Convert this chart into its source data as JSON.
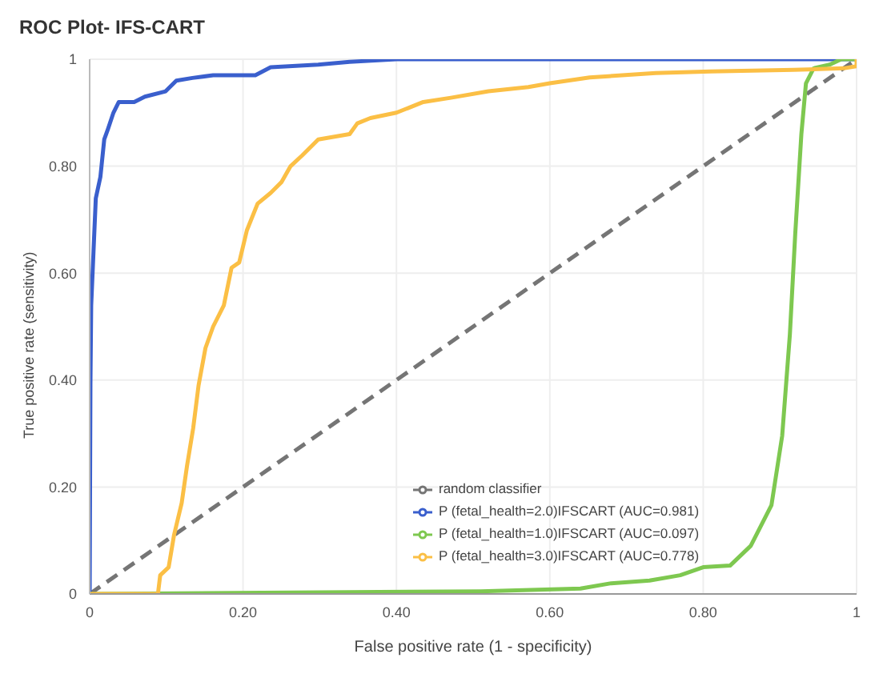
{
  "chart_data": {
    "type": "line",
    "title": "ROC Plot- IFS-CART",
    "xlabel": "False positive rate (1 - specificity)",
    "ylabel": "True positive rate (sensitivity)",
    "xlim": [
      0,
      1
    ],
    "ylim": [
      0,
      1
    ],
    "xticks": [
      0,
      {
        "value": 0.2,
        "label": "0.20"
      },
      {
        "value": 0.4,
        "label": "0.40"
      },
      {
        "value": 0.6,
        "label": "0.60"
      },
      {
        "value": 0.8,
        "label": "0.80"
      },
      1
    ],
    "yticks": [
      0,
      {
        "value": 0.2,
        "label": "0.20"
      },
      {
        "value": 0.4,
        "label": "0.40"
      },
      {
        "value": 0.6,
        "label": "0.60"
      },
      {
        "value": 0.8,
        "label": "0.80"
      },
      1
    ],
    "grid": true,
    "legend": "bottom right",
    "series": [
      {
        "name": "random classifier",
        "color": "#757575",
        "line_style": "dashed",
        "x": [
          0,
          1
        ],
        "values": [
          0,
          1
        ]
      },
      {
        "name": "P (fetal_health=2.0)IFSCART (AUC=0.981)",
        "color": "#3a5fcd",
        "line_style": "solid",
        "x": [
          0,
          0.001,
          0.002,
          0.005,
          0.008,
          0.014,
          0.019,
          0.024,
          0.031,
          0.038,
          0.058,
          0.072,
          0.099,
          0.113,
          0.134,
          0.161,
          0.216,
          0.236,
          0.298,
          0.339,
          0.4,
          1
        ],
        "values": [
          0,
          0.39,
          0.54,
          0.64,
          0.74,
          0.78,
          0.85,
          0.87,
          0.9,
          0.92,
          0.92,
          0.93,
          0.94,
          0.96,
          0.965,
          0.97,
          0.97,
          0.985,
          0.99,
          0.995,
          1,
          1
        ]
      },
      {
        "name": "P (fetal_health=1.0)IFSCART (AUC=0.097)",
        "color": "#7ec850",
        "line_style": "solid",
        "x": [
          0,
          0.51,
          0.64,
          0.68,
          0.73,
          0.77,
          0.8,
          0.835,
          0.862,
          0.889,
          0.903,
          0.913,
          0.92,
          0.928,
          0.934,
          0.944,
          0.965,
          0.98,
          1
        ],
        "values": [
          0,
          0.005,
          0.01,
          0.02,
          0.025,
          0.035,
          0.05,
          0.053,
          0.09,
          0.166,
          0.296,
          0.485,
          0.673,
          0.86,
          0.955,
          0.983,
          0.99,
          1,
          1
        ]
      },
      {
        "name": "P (fetal_health=3.0)IFSCART (AUC=0.778)",
        "color": "#fbbf45",
        "line_style": "solid",
        "x": [
          0,
          0.089,
          0.092,
          0.103,
          0.11,
          0.12,
          0.127,
          0.135,
          0.142,
          0.151,
          0.161,
          0.175,
          0.185,
          0.195,
          0.205,
          0.219,
          0.236,
          0.25,
          0.262,
          0.277,
          0.298,
          0.339,
          0.349,
          0.366,
          0.4,
          0.435,
          0.471,
          0.52,
          0.572,
          0.6,
          0.652,
          0.738,
          0.81,
          0.918,
          0.983,
          1,
          1
        ],
        "values": [
          0,
          0,
          0.035,
          0.05,
          0.11,
          0.17,
          0.24,
          0.31,
          0.39,
          0.46,
          0.5,
          0.54,
          0.61,
          0.62,
          0.68,
          0.73,
          0.75,
          0.77,
          0.8,
          0.82,
          0.85,
          0.86,
          0.88,
          0.89,
          0.9,
          0.92,
          0.928,
          0.94,
          0.948,
          0.955,
          0.966,
          0.974,
          0.977,
          0.98,
          0.983,
          0.987,
          1
        ]
      }
    ]
  }
}
